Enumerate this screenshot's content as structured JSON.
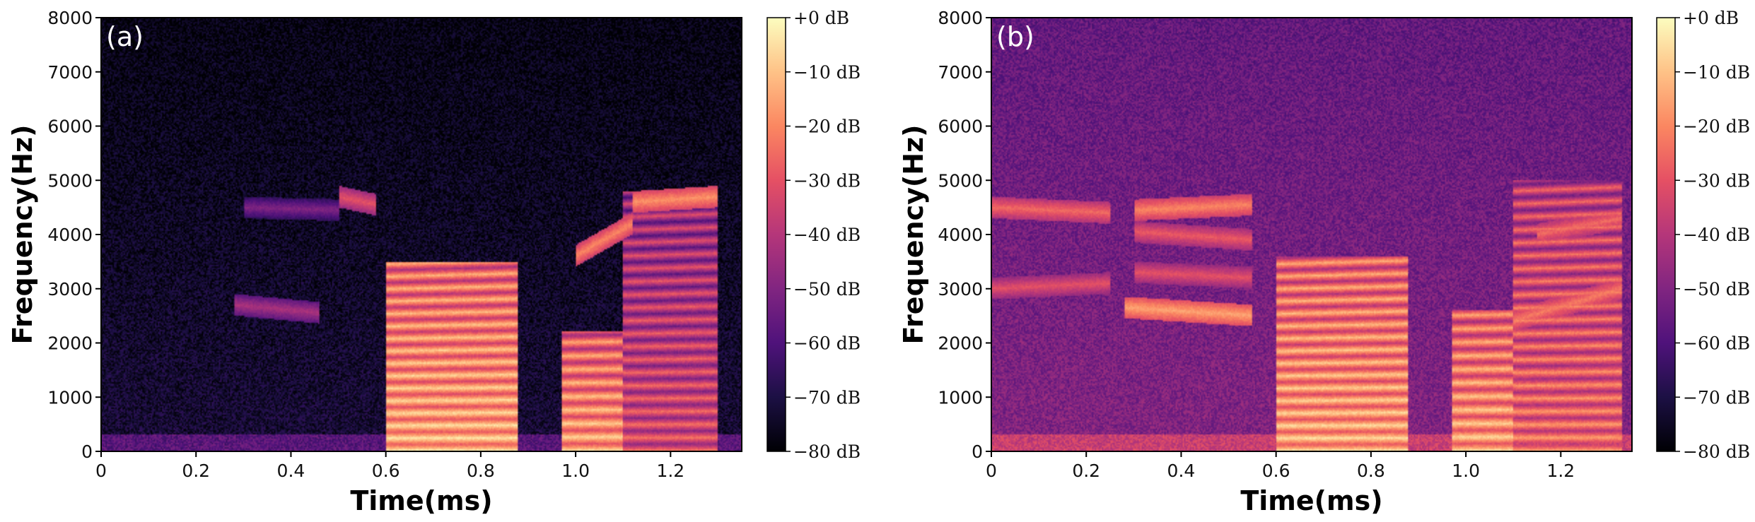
{
  "chart_data": [
    {
      "type": "heatmap",
      "panel_label": "(a)",
      "xlabel": "Time(ms)",
      "ylabel": "Frequency(Hz)",
      "xlim": [
        0,
        1.35
      ],
      "ylim": [
        0,
        8000
      ],
      "x_ticks": [
        "0",
        "0.2",
        "0.4",
        "0.6",
        "0.8",
        "1.0",
        "1.2"
      ],
      "y_ticks": [
        "0",
        "1000",
        "2000",
        "3000",
        "4000",
        "5000",
        "6000",
        "7000",
        "8000"
      ],
      "colorbar": {
        "colormap": "magma",
        "range_db": [
          -80,
          0
        ],
        "ticks": [
          "+0 dB",
          "−10 dB",
          "−20 dB",
          "−30 dB",
          "−40 dB",
          "−50 dB",
          "−60 dB",
          "−70 dB",
          "−80 dB"
        ]
      },
      "voiced_segments": [
        {
          "t_start": 0.6,
          "t_end": 0.88,
          "f0": 230,
          "harmonics_up_to_hz": 3500,
          "level_db": -3
        },
        {
          "t_start": 0.97,
          "t_end": 1.1,
          "f0": 250,
          "harmonics_up_to_hz": 2200,
          "level_db": -5
        },
        {
          "t_start": 1.1,
          "t_end": 1.3,
          "f0": 240,
          "harmonics_up_to_hz": 4800,
          "level_db": -22
        }
      ],
      "formant_tracks": [
        {
          "t_start": 0.28,
          "t_end": 0.46,
          "freq_hz": [
            2700,
            2550
          ],
          "level_db": -42
        },
        {
          "t_start": 0.3,
          "t_end": 0.5,
          "freq_hz": [
            4500,
            4450
          ],
          "level_db": -50
        },
        {
          "t_start": 0.5,
          "t_end": 0.58,
          "freq_hz": [
            4700,
            4550
          ],
          "level_db": -30
        },
        {
          "t_start": 1.0,
          "t_end": 1.12,
          "freq_hz": [
            3600,
            4200
          ],
          "level_db": -20
        },
        {
          "t_start": 1.12,
          "t_end": 1.3,
          "freq_hz": [
            4600,
            4700
          ],
          "level_db": -18
        }
      ],
      "noise_floor_db": -72
    },
    {
      "type": "heatmap",
      "panel_label": "(b)",
      "xlabel": "Time(ms)",
      "ylabel": "Frequency(Hz)",
      "xlim": [
        0,
        1.35
      ],
      "ylim": [
        0,
        8000
      ],
      "x_ticks": [
        "0",
        "0.2",
        "0.4",
        "0.6",
        "0.8",
        "1.0",
        "1.2"
      ],
      "y_ticks": [
        "0",
        "1000",
        "2000",
        "3000",
        "4000",
        "5000",
        "6000",
        "7000",
        "8000"
      ],
      "colorbar": {
        "colormap": "magma",
        "range_db": [
          -80,
          0
        ],
        "ticks": [
          "+0 dB",
          "−10 dB",
          "−20 dB",
          "−30 dB",
          "−40 dB",
          "−50 dB",
          "−60 dB",
          "−70 dB",
          "−80 dB"
        ]
      },
      "voiced_segments": [
        {
          "t_start": 0.6,
          "t_end": 0.88,
          "f0": 230,
          "harmonics_up_to_hz": 3600,
          "level_db": -4
        },
        {
          "t_start": 0.97,
          "t_end": 1.1,
          "f0": 250,
          "harmonics_up_to_hz": 2600,
          "level_db": -5
        },
        {
          "t_start": 1.1,
          "t_end": 1.33,
          "f0": 240,
          "harmonics_up_to_hz": 5000,
          "level_db": -15
        }
      ],
      "formant_tracks": [
        {
          "t_start": 0.0,
          "t_end": 0.25,
          "freq_hz": [
            4500,
            4400
          ],
          "level_db": -25
        },
        {
          "t_start": 0.0,
          "t_end": 0.25,
          "freq_hz": [
            3000,
            3100
          ],
          "level_db": -30
        },
        {
          "t_start": 0.28,
          "t_end": 0.55,
          "freq_hz": [
            2650,
            2500
          ],
          "level_db": -15
        },
        {
          "t_start": 0.3,
          "t_end": 0.55,
          "freq_hz": [
            4450,
            4550
          ],
          "level_db": -20
        },
        {
          "t_start": 0.3,
          "t_end": 0.55,
          "freq_hz": [
            4050,
            3900
          ],
          "level_db": -28
        },
        {
          "t_start": 0.3,
          "t_end": 0.55,
          "freq_hz": [
            3300,
            3200
          ],
          "level_db": -30
        },
        {
          "t_start": 1.1,
          "t_end": 1.33,
          "freq_hz": [
            2400,
            3000
          ],
          "level_db": -22
        },
        {
          "t_start": 1.15,
          "t_end": 1.33,
          "freq_hz": [
            4000,
            4300
          ],
          "level_db": -25
        }
      ],
      "noise_floor_db": -50
    }
  ]
}
